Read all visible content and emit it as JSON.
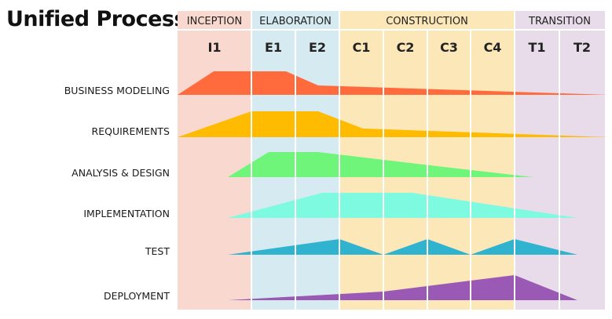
{
  "title": "Unified Process",
  "phases": [
    {
      "key": "inception",
      "label": "INCEPTION",
      "color": "#f9d9cf",
      "iterations": [
        "I1"
      ]
    },
    {
      "key": "elaboration",
      "label": "ELABORATION",
      "color": "#d6eaf1",
      "iterations": [
        "E1",
        "E2"
      ]
    },
    {
      "key": "construction",
      "label": "CONSTRUCTION",
      "color": "#fce7b8",
      "iterations": [
        "C1",
        "C2",
        "C3",
        "C4"
      ]
    },
    {
      "key": "transition",
      "label": "TRANSITION",
      "color": "#e8dbea",
      "iterations": [
        "T1",
        "T2"
      ]
    }
  ],
  "disciplines": [
    {
      "key": "business-modeling",
      "label": "BUSINESS MODELING",
      "color": "#ff6b3d"
    },
    {
      "key": "requirements",
      "label": "REQUIREMENTS",
      "color": "#ffbb00"
    },
    {
      "key": "analysis-design",
      "label": "ANALYSIS & DESIGN",
      "color": "#6ef57a"
    },
    {
      "key": "implementation",
      "label": "IMPLEMENTATION",
      "color": "#7efae0"
    },
    {
      "key": "test",
      "label": "TEST",
      "color": "#2fb3cf"
    },
    {
      "key": "deployment",
      "label": "DEPLOYMENT",
      "color": "#9b59b6"
    }
  ]
}
